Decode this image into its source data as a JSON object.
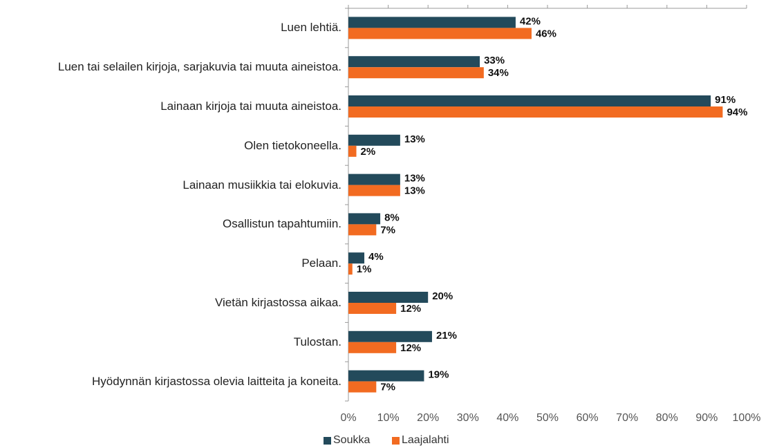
{
  "chart_data": {
    "type": "hbar",
    "categories": [
      "Luen lehtiä.",
      "Luen tai selailen kirjoja, sarjakuvia tai muuta aineistoa.",
      "Lainaan kirjoja tai muuta aineistoa.",
      "Olen tietokoneella.",
      "Lainaan musiikkia tai elokuvia.",
      "Osallistun tapahtumiin.",
      "Pelaan.",
      "Vietän kirjastossa aikaa.",
      "Tulostan.",
      "Hyödynnän kirjastossa olevia laitteita ja koneita."
    ],
    "series": [
      {
        "name": "Soukka",
        "color": "#234a5b",
        "values": [
          42,
          33,
          91,
          13,
          13,
          8,
          4,
          20,
          21,
          19
        ],
        "value_labels": [
          "42%",
          "33%",
          "91%",
          "13%",
          "13%",
          "8%",
          "4%",
          "20%",
          "21%",
          "19%"
        ]
      },
      {
        "name": "Laajalahti",
        "color": "#f26b21",
        "values": [
          46,
          34,
          94,
          2,
          13,
          7,
          1,
          12,
          12,
          7
        ],
        "value_labels": [
          "46%",
          "34%",
          "94%",
          "2%",
          "13%",
          "7%",
          "1%",
          "12%",
          "12%",
          "7%"
        ]
      }
    ],
    "xlim": [
      0,
      100
    ],
    "xticks": [
      {
        "value": 0,
        "label": "0%"
      },
      {
        "value": 10,
        "label": "10%"
      },
      {
        "value": 20,
        "label": "20%"
      },
      {
        "value": 30,
        "label": "30%"
      },
      {
        "value": 40,
        "label": "40%"
      },
      {
        "value": 50,
        "label": "50%"
      },
      {
        "value": 60,
        "label": "60%"
      },
      {
        "value": 70,
        "label": "70%"
      },
      {
        "value": 80,
        "label": "80%"
      },
      {
        "value": 90,
        "label": "90%"
      },
      {
        "value": 100,
        "label": "100%"
      }
    ],
    "legend": "bottom"
  }
}
